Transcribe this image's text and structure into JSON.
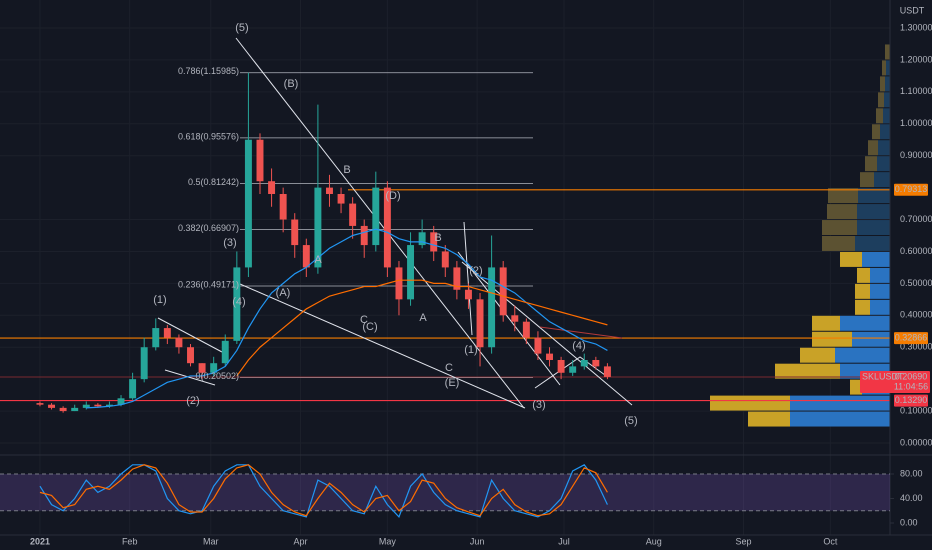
{
  "chart_data": {
    "type": "candlestick",
    "currency": "USDT",
    "symbol": "SKLUSDT",
    "countdown": "11:04:56",
    "last_price": {
      "value": 0.2069,
      "label": "0.20690"
    },
    "x": [
      0,
      4,
      8,
      12,
      16,
      20,
      24,
      28,
      32,
      36,
      40,
      44,
      48,
      52,
      56,
      60,
      64,
      68,
      72,
      76,
      80,
      84,
      88,
      92,
      96,
      100,
      104,
      108,
      112,
      116,
      120,
      124,
      128,
      132,
      136,
      140,
      144,
      148,
      152,
      156,
      160,
      164,
      168,
      172,
      176,
      180,
      184,
      188,
      192,
      196
    ],
    "open": [
      0.125,
      0.12,
      0.11,
      0.1,
      0.11,
      0.12,
      0.115,
      0.12,
      0.14,
      0.2,
      0.3,
      0.36,
      0.33,
      0.3,
      0.25,
      0.22,
      0.25,
      0.32,
      0.55,
      0.95,
      0.82,
      0.78,
      0.7,
      0.62,
      0.55,
      0.8,
      0.78,
      0.75,
      0.68,
      0.62,
      0.8,
      0.55,
      0.45,
      0.62,
      0.66,
      0.6,
      0.55,
      0.48,
      0.45,
      0.3,
      0.55,
      0.4,
      0.38,
      0.33,
      0.28,
      0.26,
      0.22,
      0.24,
      0.26,
      0.24
    ],
    "high": [
      0.13,
      0.125,
      0.115,
      0.12,
      0.13,
      0.125,
      0.13,
      0.15,
      0.22,
      0.33,
      0.39,
      0.37,
      0.34,
      0.31,
      0.25,
      0.27,
      0.34,
      0.6,
      1.16,
      0.97,
      0.86,
      0.8,
      0.72,
      0.64,
      1.06,
      0.84,
      0.8,
      0.77,
      0.7,
      0.85,
      0.82,
      0.57,
      0.66,
      0.7,
      0.68,
      0.62,
      0.57,
      0.5,
      0.47,
      0.65,
      0.57,
      0.43,
      0.39,
      0.35,
      0.3,
      0.27,
      0.26,
      0.28,
      0.27,
      0.25
    ],
    "low": [
      0.115,
      0.105,
      0.095,
      0.1,
      0.105,
      0.11,
      0.11,
      0.115,
      0.135,
      0.19,
      0.29,
      0.31,
      0.28,
      0.24,
      0.2,
      0.21,
      0.24,
      0.31,
      0.52,
      0.78,
      0.74,
      0.66,
      0.58,
      0.52,
      0.53,
      0.74,
      0.72,
      0.64,
      0.58,
      0.6,
      0.52,
      0.4,
      0.43,
      0.61,
      0.57,
      0.52,
      0.45,
      0.42,
      0.24,
      0.28,
      0.38,
      0.35,
      0.31,
      0.26,
      0.24,
      0.2,
      0.21,
      0.23,
      0.23,
      0.2
    ],
    "close": [
      0.12,
      0.11,
      0.1,
      0.11,
      0.12,
      0.115,
      0.12,
      0.14,
      0.2,
      0.3,
      0.36,
      0.33,
      0.3,
      0.25,
      0.22,
      0.25,
      0.32,
      0.55,
      0.95,
      0.82,
      0.78,
      0.7,
      0.62,
      0.55,
      0.8,
      0.78,
      0.75,
      0.68,
      0.62,
      0.8,
      0.55,
      0.45,
      0.62,
      0.66,
      0.6,
      0.55,
      0.48,
      0.45,
      0.3,
      0.55,
      0.4,
      0.38,
      0.33,
      0.28,
      0.26,
      0.22,
      0.24,
      0.26,
      0.24,
      0.207
    ],
    "up_color": "#26a69a",
    "down_color": "#ef5350",
    "moving_averages": [
      {
        "color": "#2196f3",
        "values": [
          null,
          null,
          null,
          null,
          0.11,
          0.112,
          0.115,
          0.12,
          0.13,
          0.15,
          0.17,
          0.19,
          0.2,
          0.21,
          0.21,
          0.22,
          0.24,
          0.29,
          0.36,
          0.42,
          0.47,
          0.5,
          0.53,
          0.55,
          0.58,
          0.61,
          0.63,
          0.65,
          0.66,
          0.67,
          0.66,
          0.64,
          0.63,
          0.63,
          0.62,
          0.61,
          0.59,
          0.56,
          0.52,
          0.51,
          0.49,
          0.47,
          0.44,
          0.41,
          0.38,
          0.36,
          0.34,
          0.32,
          0.31,
          0.29
        ]
      },
      {
        "color": "#ff6d00",
        "values": [
          null,
          null,
          null,
          null,
          null,
          null,
          null,
          null,
          null,
          null,
          null,
          null,
          null,
          null,
          null,
          null,
          null,
          0.21,
          0.26,
          0.3,
          0.33,
          0.36,
          0.39,
          0.42,
          0.44,
          0.46,
          0.47,
          0.48,
          0.49,
          0.49,
          0.5,
          0.51,
          0.51,
          0.51,
          0.5,
          0.5,
          0.49,
          0.49,
          0.48,
          0.47,
          0.46,
          0.45,
          0.44,
          0.43,
          0.42,
          0.41,
          0.4,
          0.39,
          0.38,
          0.37
        ]
      }
    ],
    "xlim": [
      -13.8,
      293.6
    ],
    "xticks": [
      {
        "value": 0,
        "label": "2021"
      },
      {
        "value": 31,
        "label": "Feb"
      },
      {
        "value": 59,
        "label": "Mar"
      },
      {
        "value": 90,
        "label": "Apr"
      },
      {
        "value": 120,
        "label": "May"
      },
      {
        "value": 151,
        "label": "Jun"
      },
      {
        "value": 181,
        "label": "Jul"
      },
      {
        "value": 212,
        "label": "Aug"
      },
      {
        "value": 243,
        "label": "Sep"
      },
      {
        "value": 273,
        "label": "Oct"
      }
    ],
    "ylim": [
      -0.0376,
      1.3877
    ],
    "yticks": [
      {
        "value": 0,
        "label": "0.00000"
      },
      {
        "value": 0.1,
        "label": "0.10000"
      },
      {
        "value": 0.3,
        "label": "0.30000"
      },
      {
        "value": 0.4,
        "label": "0.40000"
      },
      {
        "value": 0.5,
        "label": "0.50000"
      },
      {
        "value": 0.6,
        "label": "0.60000"
      },
      {
        "value": 0.7,
        "label": "0.70000"
      },
      {
        "value": 0.9,
        "label": "0.90000"
      },
      {
        "value": 1.0,
        "label": "1.00000"
      },
      {
        "value": 1.1,
        "label": "1.10000"
      },
      {
        "value": 1.2,
        "label": "1.20000"
      },
      {
        "value": 1.3,
        "label": "1.30000"
      }
    ],
    "grid": true,
    "levels": [
      {
        "value": 0.79313,
        "label": "0.79313",
        "color": "#f57c00"
      },
      {
        "value": 0.32866,
        "label": "0.32866",
        "color": "#f57c00"
      },
      {
        "value": 0.1329,
        "label": "0.13290",
        "color": "#f23645"
      }
    ],
    "fibonacci": [
      {
        "value": 1.15985,
        "label": "0.786(1.15985)"
      },
      {
        "value": 0.95576,
        "label": "0.618(0.95576)"
      },
      {
        "value": 0.81242,
        "label": "0.5(0.81242)"
      },
      {
        "value": 0.66907,
        "label": "0.382(0.66907)"
      },
      {
        "value": 0.49171,
        "label": "0.236(0.49171)"
      },
      {
        "value": 0.20502,
        "label": "0(0.20502)"
      }
    ],
    "wave_labels": [
      {
        "text": "(5)",
        "color": "#ffffff"
      },
      {
        "text": "(B)",
        "color": "#ffffff"
      },
      {
        "text": "B",
        "color": "#f9a825"
      },
      {
        "text": "(D)",
        "color": "#ffffff"
      },
      {
        "text": "B",
        "color": "#f9a825"
      },
      {
        "text": "(3)",
        "color": "#ffffff"
      },
      {
        "text": "A",
        "color": "#f9a825"
      },
      {
        "text": "(2)",
        "color": "#ffffff"
      },
      {
        "text": "(4)",
        "color": "#ffffff"
      },
      {
        "text": "(A)",
        "color": "#ffffff"
      },
      {
        "text": "(1)",
        "color": "#ffffff"
      },
      {
        "text": "C",
        "color": "#f9a825"
      },
      {
        "text": "(C)",
        "color": "#ffffff"
      },
      {
        "text": "A",
        "color": "#f9a825"
      },
      {
        "text": "(1)",
        "color": "#ffffff"
      },
      {
        "text": "(4)",
        "color": "#ffffff"
      },
      {
        "text": "C",
        "color": "#f9a825"
      },
      {
        "text": "(E)",
        "color": "#ffffff"
      },
      {
        "text": "(2)",
        "color": "#ffffff"
      },
      {
        "text": "(3)",
        "color": "#ffffff"
      },
      {
        "text": "(5)",
        "color": "#ffffff"
      }
    ],
    "volume_profile": {
      "levels": [
        0.075,
        0.125,
        0.175,
        0.225,
        0.275,
        0.325,
        0.375,
        0.425,
        0.475,
        0.525,
        0.575,
        0.625,
        0.675,
        0.725,
        0.775,
        0.825,
        0.875,
        0.925,
        0.975,
        1.025,
        1.075,
        1.125,
        1.175,
        1.225
      ],
      "up": [
        42,
        80,
        12,
        65,
        35,
        40,
        28,
        15,
        15,
        13,
        22,
        33,
        35,
        30,
        30,
        14,
        12,
        10,
        8,
        7,
        6,
        5,
        4,
        5
      ],
      "down": [
        100,
        100,
        28,
        50,
        55,
        38,
        50,
        20,
        20,
        20,
        28,
        35,
        33,
        33,
        32,
        16,
        13,
        12,
        10,
        7,
        6,
        5,
        4,
        0
      ],
      "up_colors": [
        "#c9a227",
        "#c9a227",
        "#c9a227",
        "#c9a227",
        "#c9a227",
        "#c9a227",
        "#c9a227",
        "#c9a227",
        "#c9a227",
        "#c9a227",
        "#c9a227",
        "#5c5232",
        "#5c5232",
        "#5c5232",
        "#5c5232",
        "#5c5232",
        "#5c5232",
        "#5c5232",
        "#5c5232",
        "#5c5232",
        "#5c5232",
        "#5c5232",
        "#5c5232",
        "#5c5232"
      ],
      "down_colors": [
        "#2a73c1",
        "#2a73c1",
        "#2a73c1",
        "#2a73c1",
        "#2a73c1",
        "#2a73c1",
        "#2a73c1",
        "#2a73c1",
        "#2a73c1",
        "#2a73c1",
        "#2a73c1",
        "#1d3e5e",
        "#1d3e5e",
        "#1d3e5e",
        "#1d3e5e",
        "#1d3e5e",
        "#1d3e5e",
        "#1d3e5e",
        "#1d3e5e",
        "#1d3e5e",
        "#1d3e5e",
        "#1d3e5e",
        "#1d3e5e",
        "#1d3e5e"
      ]
    },
    "stoch_rsi": {
      "ylim": [
        -19.6,
        106.1
      ],
      "yticks": [
        {
          "value": 0,
          "label": "0.00"
        },
        {
          "value": 40,
          "label": "40.00"
        },
        {
          "value": 80,
          "label": "80.00"
        }
      ],
      "bands": [
        20,
        80
      ],
      "band_color": "#7e57c2",
      "k": {
        "color": "#2196f3",
        "values": [
          60,
          30,
          20,
          40,
          70,
          50,
          60,
          80,
          95,
          95,
          85,
          40,
          20,
          15,
          20,
          60,
          85,
          95,
          95,
          60,
          40,
          20,
          15,
          10,
          70,
          60,
          40,
          20,
          15,
          60,
          30,
          10,
          60,
          80,
          50,
          30,
          20,
          15,
          10,
          70,
          40,
          20,
          15,
          10,
          20,
          40,
          85,
          95,
          70,
          30
        ]
      },
      "d": {
        "color": "#ff6d00",
        "values": [
          50,
          45,
          25,
          30,
          55,
          60,
          55,
          70,
          88,
          95,
          90,
          65,
          30,
          18,
          18,
          40,
          72,
          90,
          95,
          80,
          50,
          30,
          18,
          12,
          40,
          65,
          50,
          30,
          18,
          40,
          45,
          20,
          35,
          70,
          65,
          40,
          25,
          18,
          12,
          40,
          55,
          30,
          18,
          12,
          15,
          30,
          60,
          90,
          82,
          50
        ]
      }
    }
  }
}
